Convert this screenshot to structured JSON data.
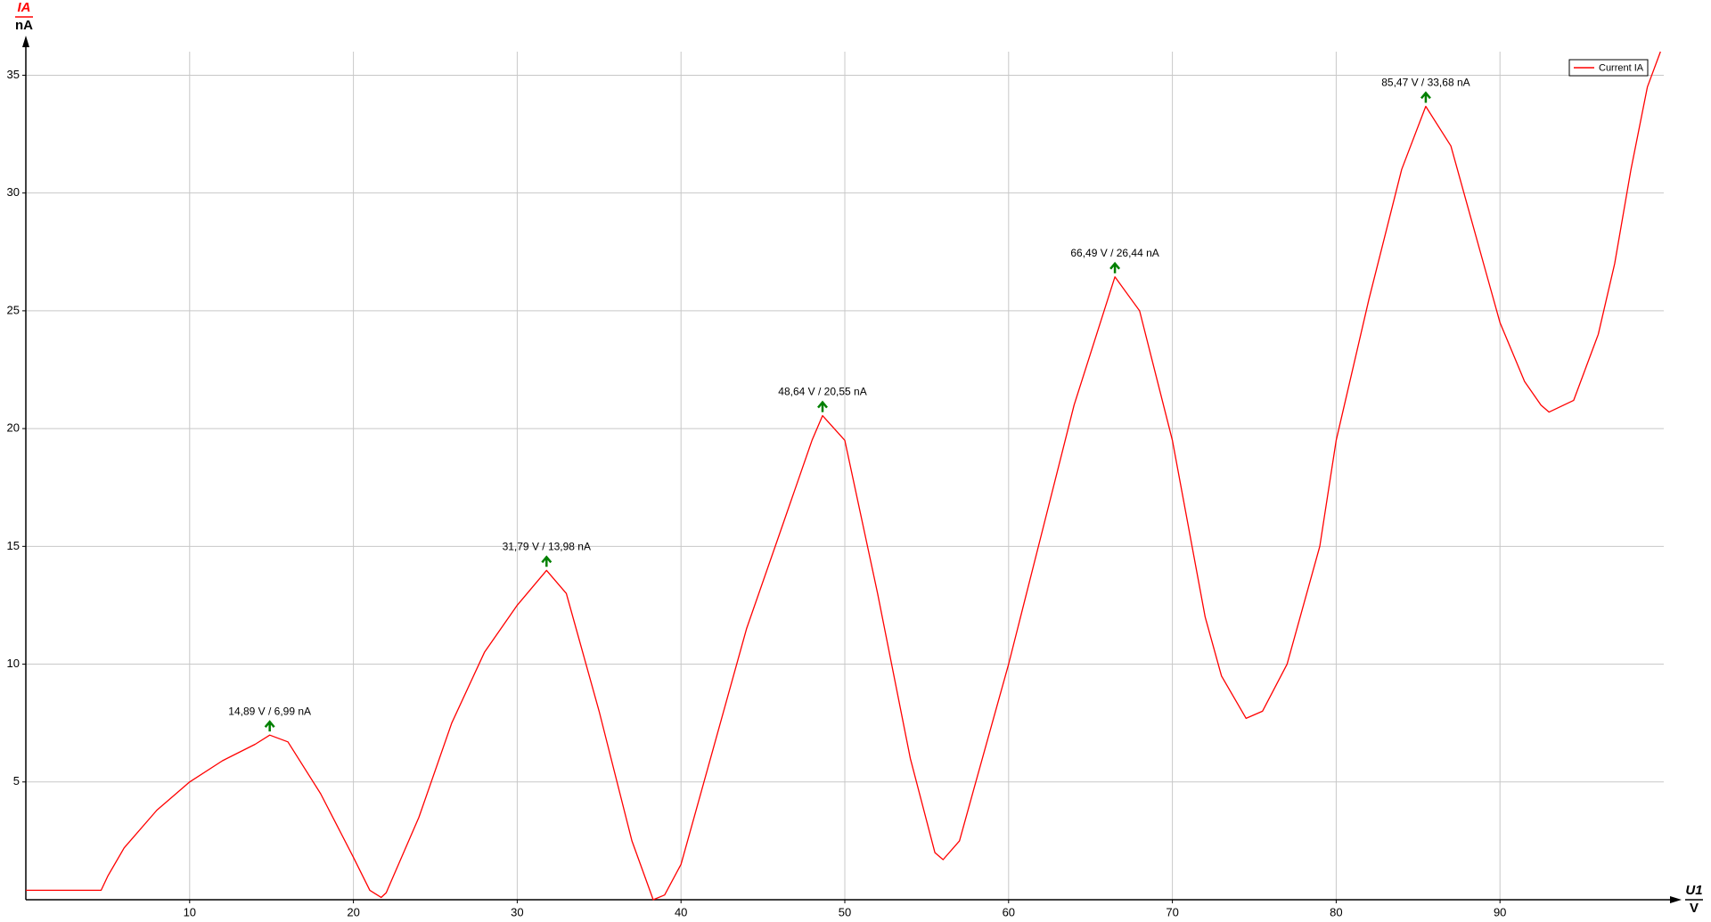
{
  "chart_data": {
    "type": "line",
    "ylabel": "IA",
    "yunit": "nA",
    "xlabel": "U1",
    "xunit": "V",
    "xlim": [
      0,
      100
    ],
    "ylim": [
      0,
      36
    ],
    "xticks": [
      10,
      20,
      30,
      40,
      50,
      60,
      70,
      80,
      90
    ],
    "yticks": [
      5,
      10,
      15,
      20,
      25,
      30,
      35
    ],
    "grid": true,
    "legend": "top-right",
    "x": [
      0,
      4.6,
      5,
      6,
      8,
      10,
      12,
      14,
      14.89,
      16,
      18,
      20,
      21,
      21.7,
      22,
      24,
      26,
      28,
      30,
      31.79,
      33,
      35,
      37,
      38.3,
      39,
      40,
      42,
      44,
      46,
      48,
      48.64,
      50,
      52,
      54,
      55.5,
      56,
      57,
      58,
      60,
      62,
      64,
      66.49,
      68,
      70,
      72,
      73,
      74.5,
      75.5,
      77,
      79,
      80,
      82,
      84,
      85.47,
      87,
      89,
      90,
      91.5,
      92.5,
      93,
      94.5,
      96,
      97,
      98,
      99,
      99.8
    ],
    "series": [
      {
        "name": "Current IA",
        "color": "#ff0000",
        "values": [
          0.4,
          0.4,
          1.0,
          2.2,
          3.8,
          5.0,
          5.9,
          6.6,
          6.99,
          6.7,
          4.5,
          1.8,
          0.4,
          0.1,
          0.3,
          3.5,
          7.5,
          10.5,
          12.5,
          13.98,
          13.0,
          8.0,
          2.5,
          0,
          0.2,
          1.5,
          6.5,
          11.5,
          15.5,
          19.5,
          20.55,
          19.5,
          13.0,
          6.0,
          2.0,
          1.7,
          2.5,
          5,
          10,
          15.5,
          21,
          26.44,
          25,
          19.5,
          12,
          9.5,
          7.7,
          8.0,
          10,
          15,
          19.5,
          25.5,
          31,
          33.68,
          32,
          27,
          24.5,
          22,
          21,
          20.7,
          21.2,
          24,
          27,
          31,
          34.5,
          36
        ]
      }
    ],
    "annotations": [
      {
        "text": "14,89 V / 6,99 nA",
        "x": 14.89,
        "y": 6.99
      },
      {
        "text": "31,79 V / 13,98 nA",
        "x": 31.79,
        "y": 13.98
      },
      {
        "text": "48,64 V / 20,55 nA",
        "x": 48.64,
        "y": 20.55
      },
      {
        "text": "66,49 V / 26,44 nA",
        "x": 66.49,
        "y": 26.44
      },
      {
        "text": "85,47 V / 33,68 nA",
        "x": 85.47,
        "y": 33.68
      }
    ],
    "annotation_color": "#008000"
  }
}
